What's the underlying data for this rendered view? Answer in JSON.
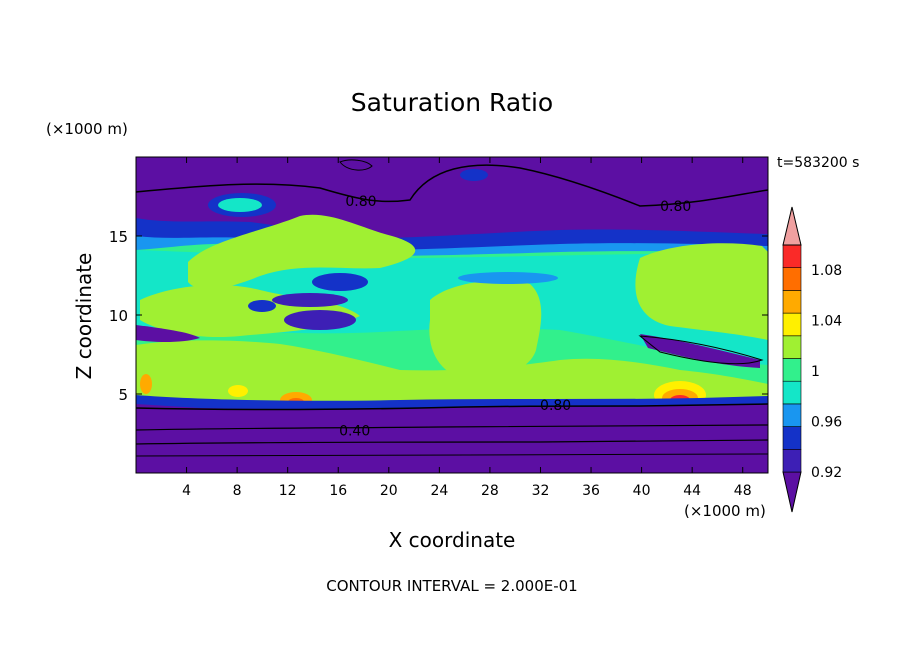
{
  "chart_data": {
    "type": "heatmap",
    "title": "Saturation Ratio",
    "xlabel": "X coordinate",
    "ylabel": "Z coordinate",
    "x_unit": "(×1000 m)",
    "y_unit": "(×1000 m)",
    "time_label": "t=583200 s",
    "footer": "CONTOUR INTERVAL = 2.000E-01",
    "xlim": [
      0,
      50
    ],
    "ylim": [
      0,
      20
    ],
    "x_ticks": [
      4,
      8,
      12,
      16,
      20,
      24,
      28,
      32,
      36,
      40,
      44,
      48
    ],
    "x_tick_labels": [
      "4",
      "8",
      "12",
      "16",
      "20",
      "24",
      "28",
      "32",
      "36",
      "40",
      "44",
      "48"
    ],
    "y_ticks": [
      5,
      10,
      15
    ],
    "y_tick_labels": [
      "5",
      "10",
      "15"
    ],
    "contour_labels": [
      {
        "text": "0.80",
        "x": 17.8,
        "z": 17.2
      },
      {
        "text": "0.80",
        "x": 42.7,
        "z": 16.9
      },
      {
        "text": "0.80",
        "x": 33.2,
        "z": 4.3
      },
      {
        "text": "0.40",
        "x": 17.3,
        "z": 2.7
      }
    ],
    "colorbar": {
      "levels": [
        0.92,
        0.94,
        0.96,
        0.98,
        1.0,
        1.02,
        1.04,
        1.06,
        1.08,
        1.1
      ],
      "tick_labels": [
        "0.92",
        "0.96",
        "1",
        "1.04",
        "1.08"
      ],
      "tick_values": [
        0.92,
        0.96,
        1.0,
        1.04,
        1.08
      ],
      "colors": [
        "#5c0fa3",
        "#3d1fb5",
        "#1432c8",
        "#1996f0",
        "#14e6c8",
        "#32f08c",
        "#a0f032",
        "#fff000",
        "#ffaa00",
        "#ff6e00",
        "#fa2a28",
        "#f0a0a0"
      ]
    }
  }
}
